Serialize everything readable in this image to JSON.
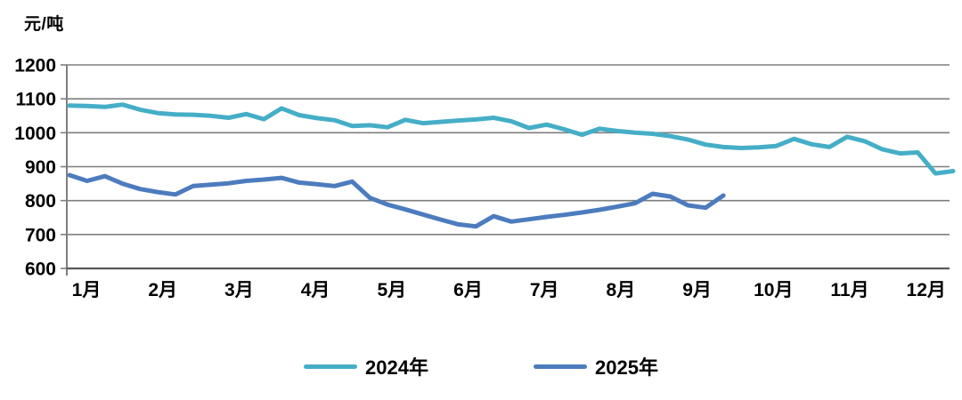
{
  "chart_data": {
    "type": "line",
    "title": "",
    "ylabel": "元/吨",
    "xlabel": "",
    "ylim": [
      600,
      1200
    ],
    "y_ticks": [
      1200,
      1100,
      1000,
      900,
      800,
      700,
      600
    ],
    "x_month_labels": [
      "1月",
      "2月",
      "3月",
      "4月",
      "5月",
      "6月",
      "7月",
      "8月",
      "9月",
      "10月",
      "11月",
      "12月"
    ],
    "grid": "horizontal-only",
    "legend_position": "bottom-center",
    "gridline_color": "#7f7f7f",
    "axis_color": "#595959",
    "series": [
      {
        "name": "2024年",
        "color": "#45AEC7",
        "x_start": 78,
        "x_step": 19.84,
        "values": [
          1080,
          1079,
          1076,
          1083,
          1068,
          1058,
          1054,
          1053,
          1050,
          1044,
          1055,
          1040,
          1072,
          1052,
          1043,
          1037,
          1020,
          1022,
          1016,
          1038,
          1028,
          1032,
          1036,
          1039,
          1044,
          1034,
          1014,
          1024,
          1010,
          994,
          1012,
          1005,
          1000,
          997,
          990,
          980,
          965,
          958,
          955,
          957,
          961,
          982,
          966,
          958,
          988,
          975,
          951,
          939,
          942,
          880,
          887
        ]
      },
      {
        "name": "2025年",
        "color": "#4C7CBE",
        "x_start": 78,
        "x_step": 19.84,
        "values": [
          875,
          858,
          872,
          850,
          834,
          825,
          818,
          843,
          847,
          851,
          858,
          862,
          867,
          853,
          848,
          843,
          856,
          808,
          788,
          774,
          759,
          744,
          730,
          724,
          754,
          738,
          745,
          752,
          758,
          765,
          773,
          782,
          792,
          820,
          812,
          786,
          779,
          815
        ]
      }
    ],
    "legend": [
      "2024年",
      "2025年"
    ]
  }
}
